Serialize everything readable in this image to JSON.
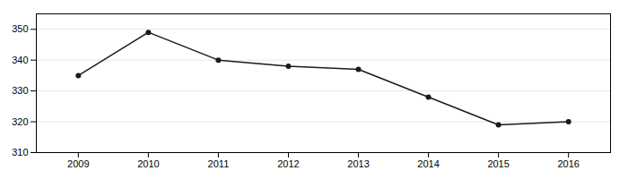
{
  "chart_data": {
    "type": "line",
    "x": [
      2009,
      2010,
      2011,
      2012,
      2013,
      2014,
      2015,
      2016
    ],
    "values": [
      335,
      349,
      340,
      338,
      337,
      328,
      319,
      320
    ],
    "color": "#1a1a1a",
    "marker": "circle",
    "xlim": [
      2008.4,
      2016.6
    ],
    "xticks": [
      2009,
      2010,
      2011,
      2012,
      2013,
      2014,
      2015,
      2016
    ],
    "ylim": [
      310,
      355
    ],
    "yticks": [
      310,
      320,
      330,
      340,
      350
    ],
    "grid": true
  }
}
